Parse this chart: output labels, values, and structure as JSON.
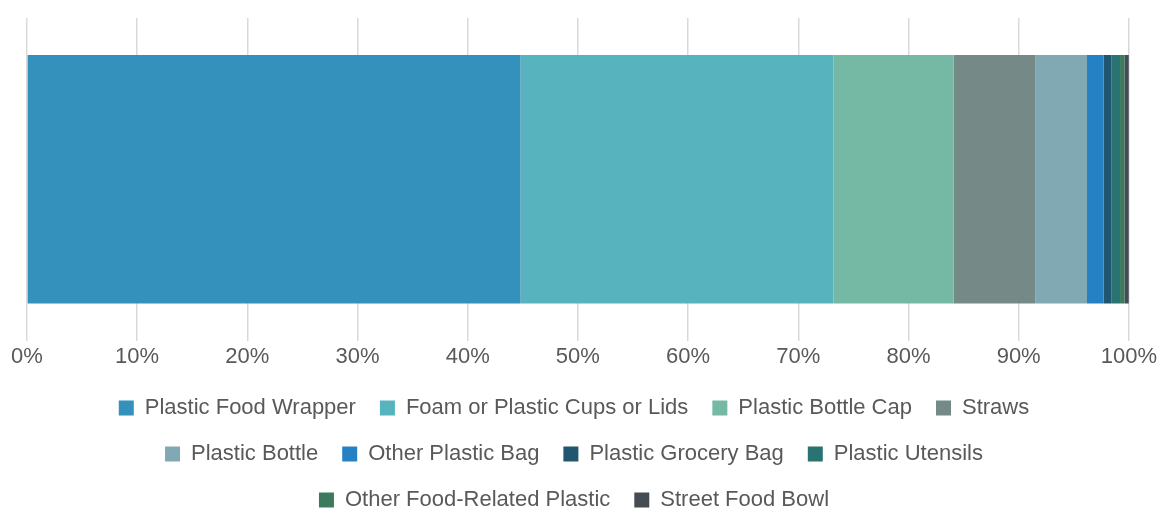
{
  "chart_data": {
    "type": "bar",
    "orientation": "horizontal",
    "stacked": true,
    "categories": [
      null
    ],
    "series": [
      {
        "name": "Plastic Food Wrapper",
        "color": "#3391bc",
        "values": [
          44.8
        ]
      },
      {
        "name": "Foam or Plastic Cups or Lids",
        "color": "#57b4be",
        "values": [
          28.4
        ]
      },
      {
        "name": "Plastic Bottle Cap",
        "color": "#75b9a5",
        "values": [
          10.9
        ]
      },
      {
        "name": "Straws",
        "color": "#758a87",
        "values": [
          7.4
        ]
      },
      {
        "name": "Plastic Bottle",
        "color": "#80a9b3",
        "values": [
          4.7
        ]
      },
      {
        "name": "Other Plastic Bag",
        "color": "#2680c4",
        "values": [
          1.5
        ]
      },
      {
        "name": "Plastic Grocery Bag",
        "color": "#215670",
        "values": [
          0.7
        ]
      },
      {
        "name": "Plastic Utensils",
        "color": "#2a7373",
        "values": [
          0.8
        ]
      },
      {
        "name": "Other Food-Related Plastic",
        "color": "#3b7a5c",
        "values": [
          0.4
        ]
      },
      {
        "name": "Street Food Bowl",
        "color": "#444c54",
        "values": [
          0.4
        ]
      }
    ],
    "xlim": [
      0,
      100
    ],
    "xticks": [
      {
        "value": 0,
        "label": "0%"
      },
      {
        "value": 10,
        "label": "10%"
      },
      {
        "value": 20,
        "label": "20%"
      },
      {
        "value": 30,
        "label": "30%"
      },
      {
        "value": 40,
        "label": "40%"
      },
      {
        "value": 50,
        "label": "50%"
      },
      {
        "value": 60,
        "label": "60%"
      },
      {
        "value": 70,
        "label": "70%"
      },
      {
        "value": 80,
        "label": "80%"
      },
      {
        "value": 90,
        "label": "90%"
      },
      {
        "value": 100,
        "label": "100%"
      }
    ],
    "grid": "x",
    "legend": "bottom",
    "tick_labels": "x"
  }
}
